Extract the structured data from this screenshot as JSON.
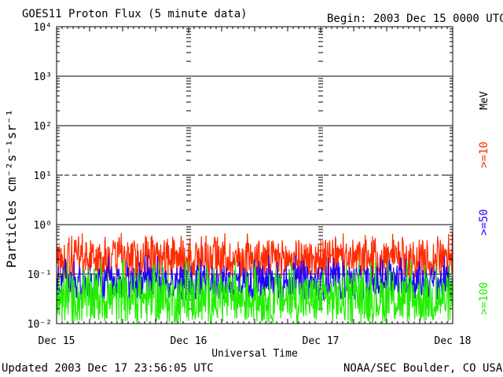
{
  "chart_data": {
    "type": "line",
    "title": "GOES11 Proton Flux (5 minute data)",
    "begin_label": "Begin: 2003 Dec 15 0000 UTC",
    "xlabel": "Universal Time",
    "ylabel": "Particles cm⁻²s⁻¹sr⁻¹",
    "yscale": "log",
    "ylim": [
      0.01,
      10000
    ],
    "y_ticks": [
      {
        "value": 10000,
        "label": "10⁴"
      },
      {
        "value": 1000,
        "label": "10³"
      },
      {
        "value": 100,
        "label": "10²"
      },
      {
        "value": 10,
        "label": "10¹"
      },
      {
        "value": 1,
        "label": "10⁰"
      },
      {
        "value": 0.1,
        "label": "10⁻¹"
      },
      {
        "value": 0.01,
        "label": "10⁻²"
      }
    ],
    "x_ticks": [
      {
        "value": 0,
        "label": "Dec 15"
      },
      {
        "value": 1,
        "label": "Dec 16"
      },
      {
        "value": 2,
        "label": "Dec 17"
      },
      {
        "value": 3,
        "label": "Dec 18"
      }
    ],
    "xlim_days": [
      0,
      3
    ],
    "threshold_line": {
      "value": 10,
      "style": "dashed"
    },
    "series_unit_label": "MeV",
    "series": [
      {
        "name": ">=10",
        "color": "#ff2a00",
        "typical_range": [
          0.08,
          0.5
        ],
        "spike_max": 0.7
      },
      {
        "name": ">=50",
        "color": "#2200ff",
        "typical_range": [
          0.03,
          0.15
        ],
        "spike_max": 0.25
      },
      {
        "name": ">=100",
        "color": "#22ee00",
        "typical_range": [
          0.01,
          0.1
        ],
        "spike_max": 0.2
      }
    ]
  },
  "footer": {
    "updated": "Updated 2003 Dec 17 23:56:05 UTC",
    "source": "NOAA/SEC Boulder, CO USA"
  }
}
